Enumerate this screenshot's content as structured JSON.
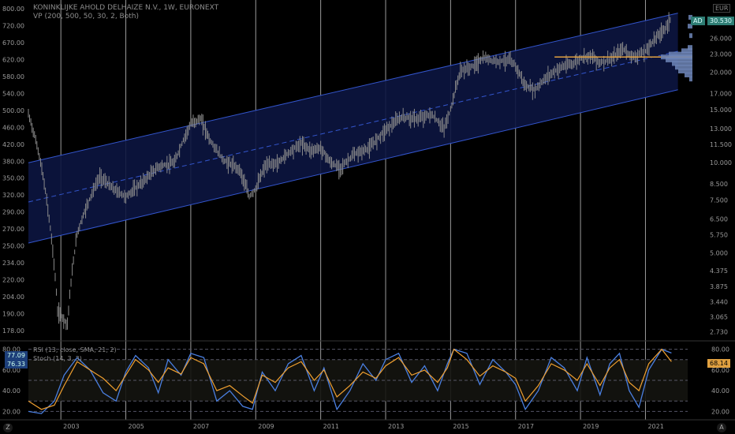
{
  "header": {
    "title": "KONINKLIJKE AHOLD DELHAIZE N.V., 1W, EURONEXT",
    "vp": "VP (200, 500, 50, 30, 2, Both)",
    "currency": "EUR"
  },
  "labels": {
    "price_symbol": "AD",
    "price_value": "30.530",
    "rsi_title": "RSI (13, close, SMA, 21, 2)",
    "stoch_title": "Stoch (14, 3, 3)",
    "rsi_badge_1": "77.09",
    "rsi_badge_2": "76.33",
    "rsi_right": "68.14"
  },
  "corners": {
    "left": "Z",
    "right": "A"
  },
  "colors": {
    "background": "#000000",
    "channel_fill": "#0c1540",
    "channel_line": "#3355cc",
    "candle": "#8a8a8a",
    "poc_line": "#e0a040",
    "volume_profile": "#6e86b8",
    "rsi_line": "#f0a030",
    "stoch_line": "#4a7fe0",
    "price_badge": "#2e7d74"
  },
  "chart_data": {
    "type": "candlestick",
    "title": "KONINKLIJKE AHOLD DELHAIZE N.V., 1W, EURONEXT",
    "x_axis_ticks": [
      "2003",
      "2005",
      "2007",
      "2009",
      "2011",
      "2013",
      "2015",
      "2017",
      "2019",
      "2021"
    ],
    "left_axis_ticks": [
      "800.00",
      "720.00",
      "670.00",
      "620.00",
      "580.00",
      "540.00",
      "500.00",
      "460.00",
      "420.00",
      "380.00",
      "350.00",
      "320.00",
      "290.00",
      "270.00",
      "250.00",
      "234.00",
      "220.00",
      "204.00",
      "190.00",
      "178.00"
    ],
    "right_axis_ticks": [
      "26.000",
      "23.000",
      "20.000",
      "17.000",
      "15.000",
      "13.000",
      "11.500",
      "10.000",
      "8.500",
      "7.500",
      "6.500",
      "5.750",
      "5.000",
      "4.375",
      "3.875",
      "3.440",
      "3.065",
      "2.730"
    ],
    "series": [
      {
        "name": "AD",
        "x": [
          2002.0,
          2002.3,
          2002.6,
          2002.9,
          2003.2,
          2003.5,
          2003.8,
          2004.2,
          2004.6,
          2005.0,
          2005.5,
          2006.0,
          2006.5,
          2007.0,
          2007.3,
          2007.6,
          2008.0,
          2008.5,
          2008.8,
          2009.0,
          2009.3,
          2009.7,
          2010.0,
          2010.4,
          2010.7,
          2011.0,
          2011.3,
          2011.6,
          2012.0,
          2012.5,
          2013.0,
          2013.5,
          2014.0,
          2014.4,
          2014.8,
          2015.0,
          2015.3,
          2015.7,
          2016.0,
          2016.4,
          2016.8,
          2017.0,
          2017.3,
          2017.6,
          2018.0,
          2018.4,
          2018.8,
          2019.0,
          2019.3,
          2019.6,
          2020.0,
          2020.3,
          2020.6,
          2021.0,
          2021.3,
          2021.6,
          2021.8
        ],
        "values": [
          14.5,
          11.0,
          7.0,
          3.2,
          2.9,
          5.8,
          7.2,
          9.0,
          8.2,
          7.7,
          8.6,
          9.7,
          10.0,
          13.5,
          14.0,
          11.8,
          10.2,
          9.5,
          7.7,
          8.2,
          9.8,
          10.0,
          10.8,
          11.6,
          11.0,
          11.2,
          10.0,
          9.6,
          10.6,
          11.2,
          12.9,
          14.2,
          14.0,
          14.5,
          13.0,
          15.0,
          20.2,
          21.0,
          22.3,
          21.8,
          22.0,
          21.0,
          18.0,
          17.5,
          19.5,
          20.8,
          21.5,
          22.3,
          22.8,
          21.5,
          22.3,
          24.0,
          22.5,
          23.5,
          26.0,
          28.0,
          30.53
        ]
      }
    ],
    "channel": {
      "upper": [
        [
          2002.0,
          10.0
        ],
        [
          2022.0,
          31.5
        ]
      ],
      "lower": [
        [
          2002.0,
          5.4
        ],
        [
          2022.0,
          17.5
        ]
      ],
      "median": [
        [
          2002.0,
          7.4
        ],
        [
          2022.0,
          23.5
        ]
      ]
    },
    "poc_level": 22.5,
    "oscillators": {
      "axis_ticks": [
        "80.00",
        "60.00",
        "40.00",
        "20.00"
      ],
      "rsi_last": 68.14,
      "stoch_last": 76.33,
      "rsi": [
        [
          2002.0,
          30
        ],
        [
          2002.4,
          22
        ],
        [
          2002.8,
          26
        ],
        [
          2003.1,
          45
        ],
        [
          2003.5,
          68
        ],
        [
          2003.9,
          60
        ],
        [
          2004.3,
          52
        ],
        [
          2004.7,
          40
        ],
        [
          2005.0,
          55
        ],
        [
          2005.3,
          70
        ],
        [
          2005.7,
          60
        ],
        [
          2006.0,
          48
        ],
        [
          2006.3,
          62
        ],
        [
          2006.7,
          56
        ],
        [
          2007.0,
          72
        ],
        [
          2007.4,
          66
        ],
        [
          2007.8,
          40
        ],
        [
          2008.2,
          45
        ],
        [
          2008.6,
          35
        ],
        [
          2008.9,
          28
        ],
        [
          2009.2,
          55
        ],
        [
          2009.6,
          48
        ],
        [
          2010.0,
          62
        ],
        [
          2010.4,
          68
        ],
        [
          2010.8,
          50
        ],
        [
          2011.1,
          60
        ],
        [
          2011.5,
          34
        ],
        [
          2011.9,
          45
        ],
        [
          2012.3,
          58
        ],
        [
          2012.7,
          52
        ],
        [
          2013.0,
          64
        ],
        [
          2013.4,
          72
        ],
        [
          2013.8,
          55
        ],
        [
          2014.2,
          60
        ],
        [
          2014.6,
          48
        ],
        [
          2014.9,
          62
        ],
        [
          2015.1,
          80
        ],
        [
          2015.5,
          70
        ],
        [
          2015.9,
          54
        ],
        [
          2016.3,
          64
        ],
        [
          2016.7,
          58
        ],
        [
          2017.0,
          52
        ],
        [
          2017.3,
          30
        ],
        [
          2017.7,
          45
        ],
        [
          2018.1,
          66
        ],
        [
          2018.5,
          60
        ],
        [
          2018.9,
          50
        ],
        [
          2019.2,
          66
        ],
        [
          2019.6,
          45
        ],
        [
          2019.9,
          62
        ],
        [
          2020.2,
          70
        ],
        [
          2020.5,
          48
        ],
        [
          2020.8,
          40
        ],
        [
          2021.1,
          66
        ],
        [
          2021.5,
          80
        ],
        [
          2021.8,
          68.14
        ]
      ],
      "stoch": [
        [
          2002.0,
          20
        ],
        [
          2002.4,
          18
        ],
        [
          2002.8,
          30
        ],
        [
          2003.1,
          55
        ],
        [
          2003.5,
          72
        ],
        [
          2003.9,
          60
        ],
        [
          2004.3,
          38
        ],
        [
          2004.7,
          30
        ],
        [
          2005.0,
          58
        ],
        [
          2005.3,
          74
        ],
        [
          2005.7,
          62
        ],
        [
          2006.0,
          38
        ],
        [
          2006.3,
          70
        ],
        [
          2006.7,
          55
        ],
        [
          2007.0,
          76
        ],
        [
          2007.4,
          72
        ],
        [
          2007.8,
          30
        ],
        [
          2008.2,
          40
        ],
        [
          2008.6,
          25
        ],
        [
          2008.9,
          22
        ],
        [
          2009.2,
          58
        ],
        [
          2009.6,
          40
        ],
        [
          2010.0,
          66
        ],
        [
          2010.4,
          74
        ],
        [
          2010.8,
          40
        ],
        [
          2011.1,
          62
        ],
        [
          2011.5,
          22
        ],
        [
          2011.9,
          40
        ],
        [
          2012.3,
          66
        ],
        [
          2012.7,
          50
        ],
        [
          2013.0,
          70
        ],
        [
          2013.4,
          76
        ],
        [
          2013.8,
          48
        ],
        [
          2014.2,
          64
        ],
        [
          2014.6,
          40
        ],
        [
          2014.9,
          66
        ],
        [
          2015.1,
          80
        ],
        [
          2015.5,
          76
        ],
        [
          2015.9,
          46
        ],
        [
          2016.3,
          70
        ],
        [
          2016.7,
          58
        ],
        [
          2017.0,
          46
        ],
        [
          2017.3,
          22
        ],
        [
          2017.7,
          40
        ],
        [
          2018.1,
          72
        ],
        [
          2018.5,
          62
        ],
        [
          2018.9,
          40
        ],
        [
          2019.2,
          72
        ],
        [
          2019.6,
          36
        ],
        [
          2019.9,
          66
        ],
        [
          2020.2,
          76
        ],
        [
          2020.5,
          40
        ],
        [
          2020.8,
          24
        ],
        [
          2021.1,
          60
        ],
        [
          2021.5,
          80
        ],
        [
          2021.8,
          76.33
        ]
      ]
    }
  }
}
